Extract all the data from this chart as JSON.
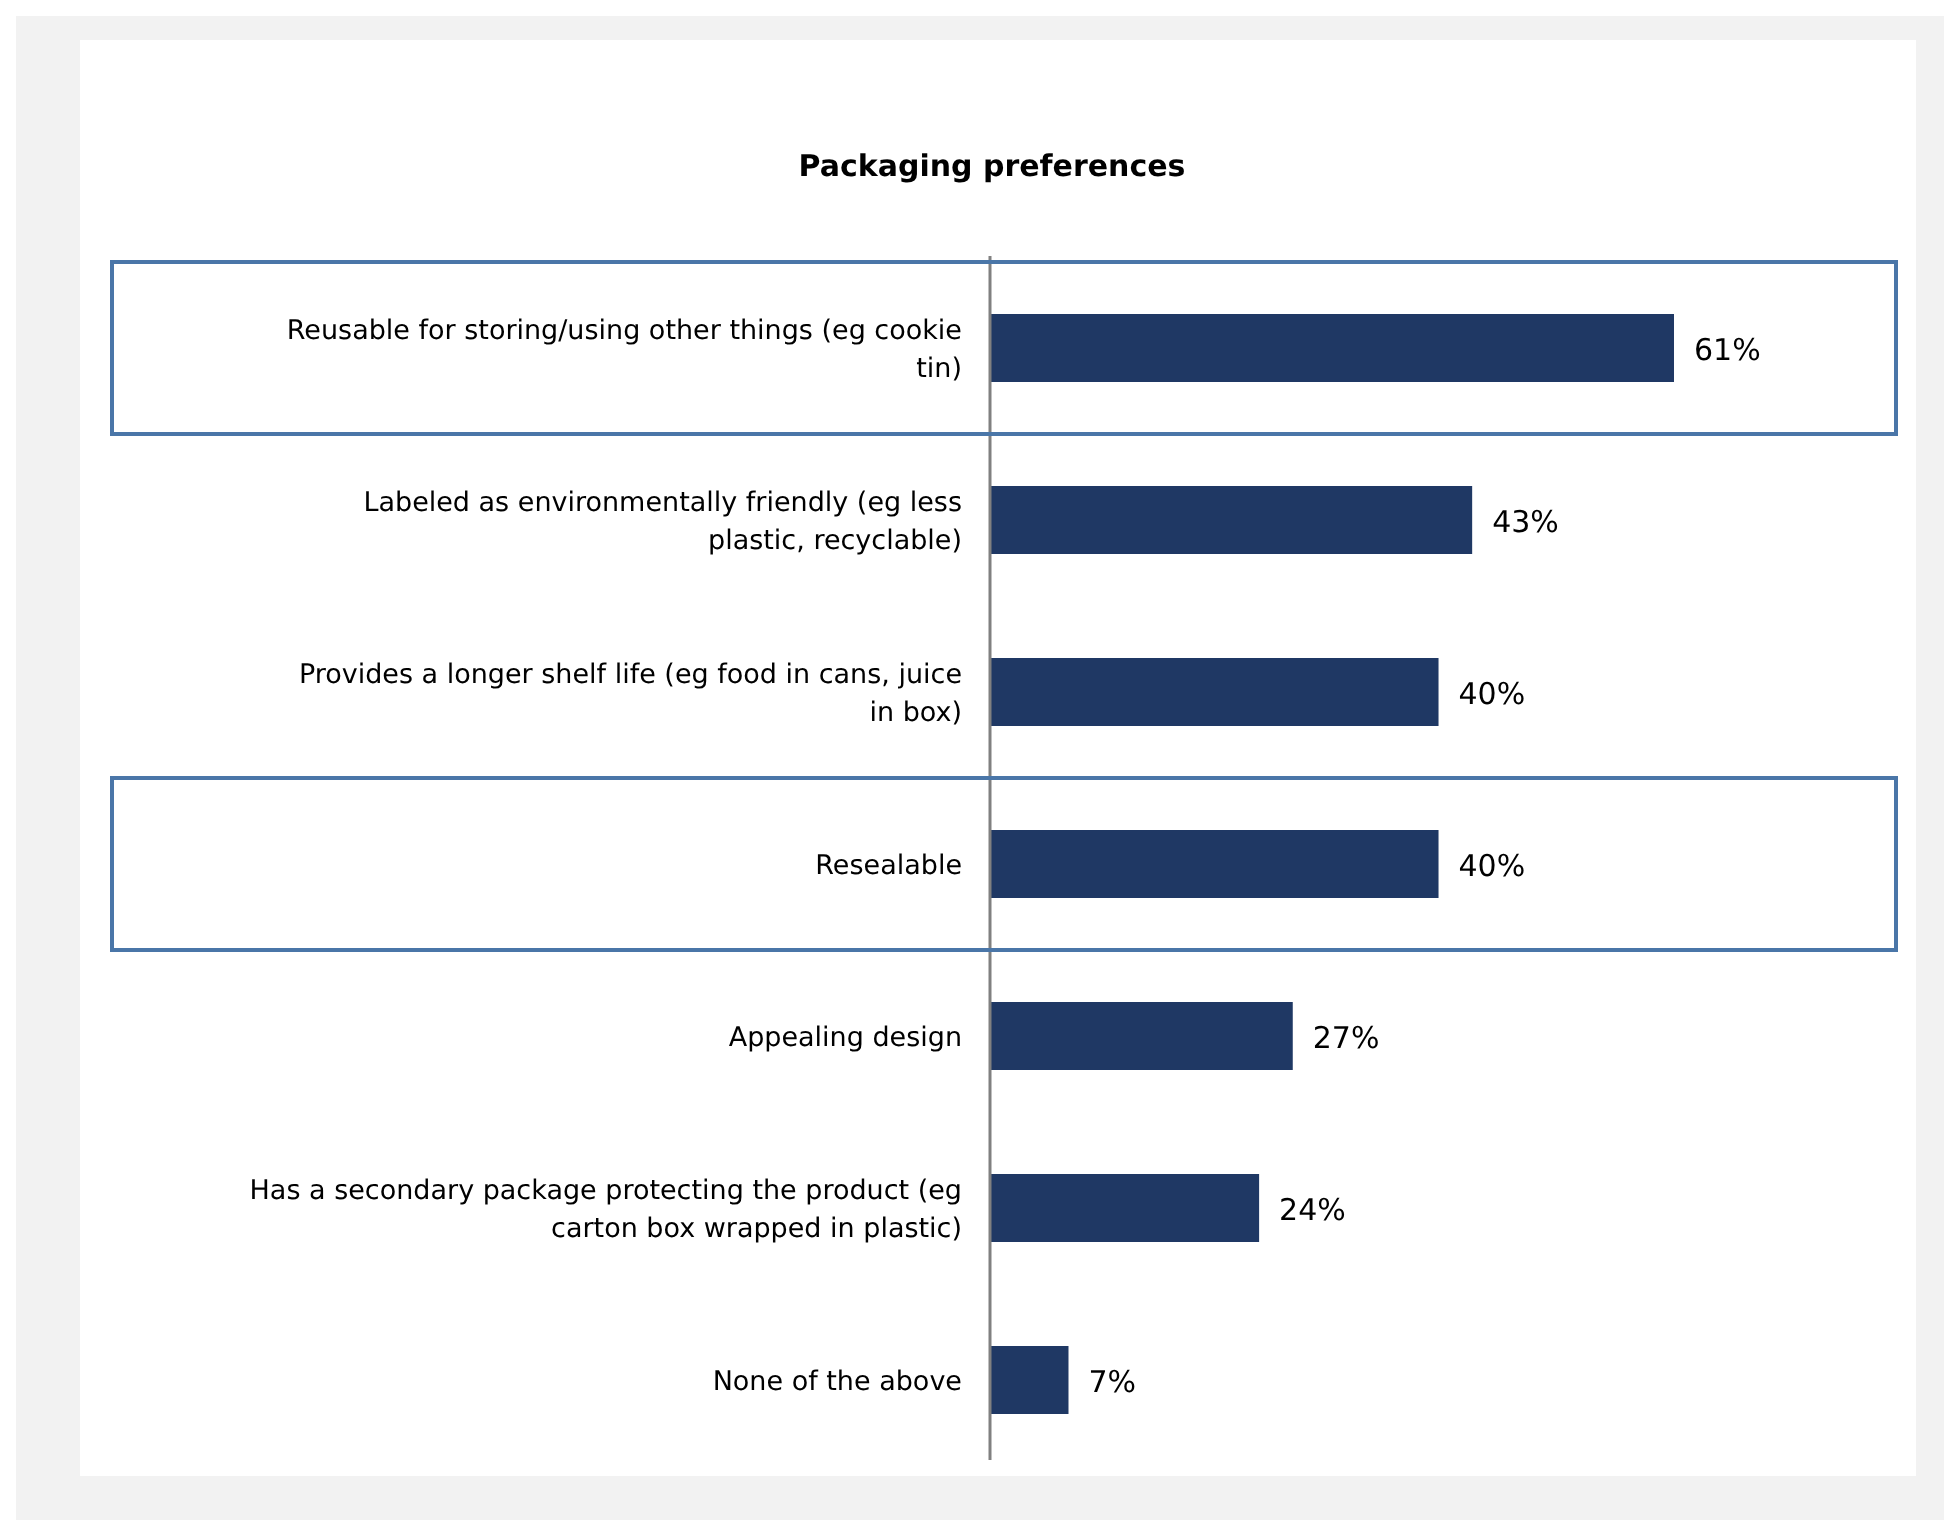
{
  "chart_data": {
    "type": "bar",
    "orientation": "horizontal",
    "title": "Packaging preferences",
    "categories": [
      "Reusable for storing/using other things (eg cookie tin)",
      "Labeled as environmentally friendly (eg less plastic, recyclable)",
      "Provides a longer shelf life (eg food in cans, juice in box)",
      "Resealable",
      "Appealing design",
      "Has a secondary package protecting the product (eg carton box wrapped in plastic)",
      "None of the above"
    ],
    "values": [
      61,
      43,
      40,
      40,
      27,
      24,
      7
    ],
    "value_labels": [
      "61%",
      "43%",
      "40%",
      "40%",
      "27%",
      "24%",
      "7%"
    ],
    "color": "#1f3864"
  }
}
